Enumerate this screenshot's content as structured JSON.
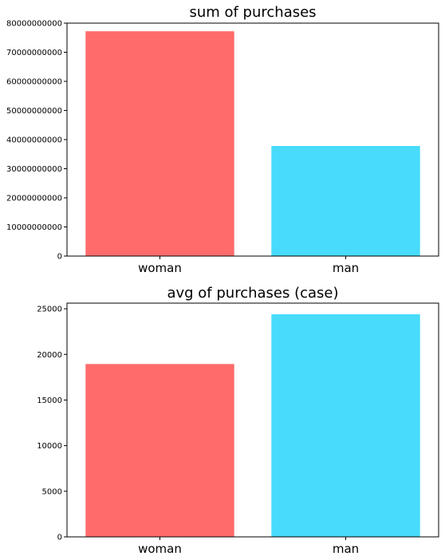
{
  "chart_data": [
    {
      "type": "bar",
      "title": "sum of purchases",
      "categories": [
        "woman",
        "man"
      ],
      "values": [
        77200000000,
        37800000000
      ],
      "colors": [
        "#ff6b6b",
        "#48dbfb"
      ],
      "ylim": [
        0,
        80000000000
      ],
      "yticks": [
        0,
        10000000000,
        20000000000,
        30000000000,
        40000000000,
        50000000000,
        60000000000,
        70000000000,
        80000000000
      ],
      "ytick_labels": [
        "0",
        "10000000000",
        "20000000000",
        "30000000000",
        "40000000000",
        "50000000000",
        "60000000000",
        "70000000000",
        "80000000000"
      ],
      "xlabel": "",
      "ylabel": "",
      "grid": false
    },
    {
      "type": "bar",
      "title": "avg of purchases (case)",
      "categories": [
        "woman",
        "man"
      ],
      "values": [
        18950,
        24400
      ],
      "colors": [
        "#ff6b6b",
        "#48dbfb"
      ],
      "ylim": [
        0,
        25620
      ],
      "yticks": [
        0,
        5000,
        10000,
        15000,
        20000,
        25000
      ],
      "ytick_labels": [
        "0",
        "5000",
        "10000",
        "15000",
        "20000",
        "25000"
      ],
      "xlabel": "",
      "ylabel": "",
      "grid": false
    }
  ]
}
